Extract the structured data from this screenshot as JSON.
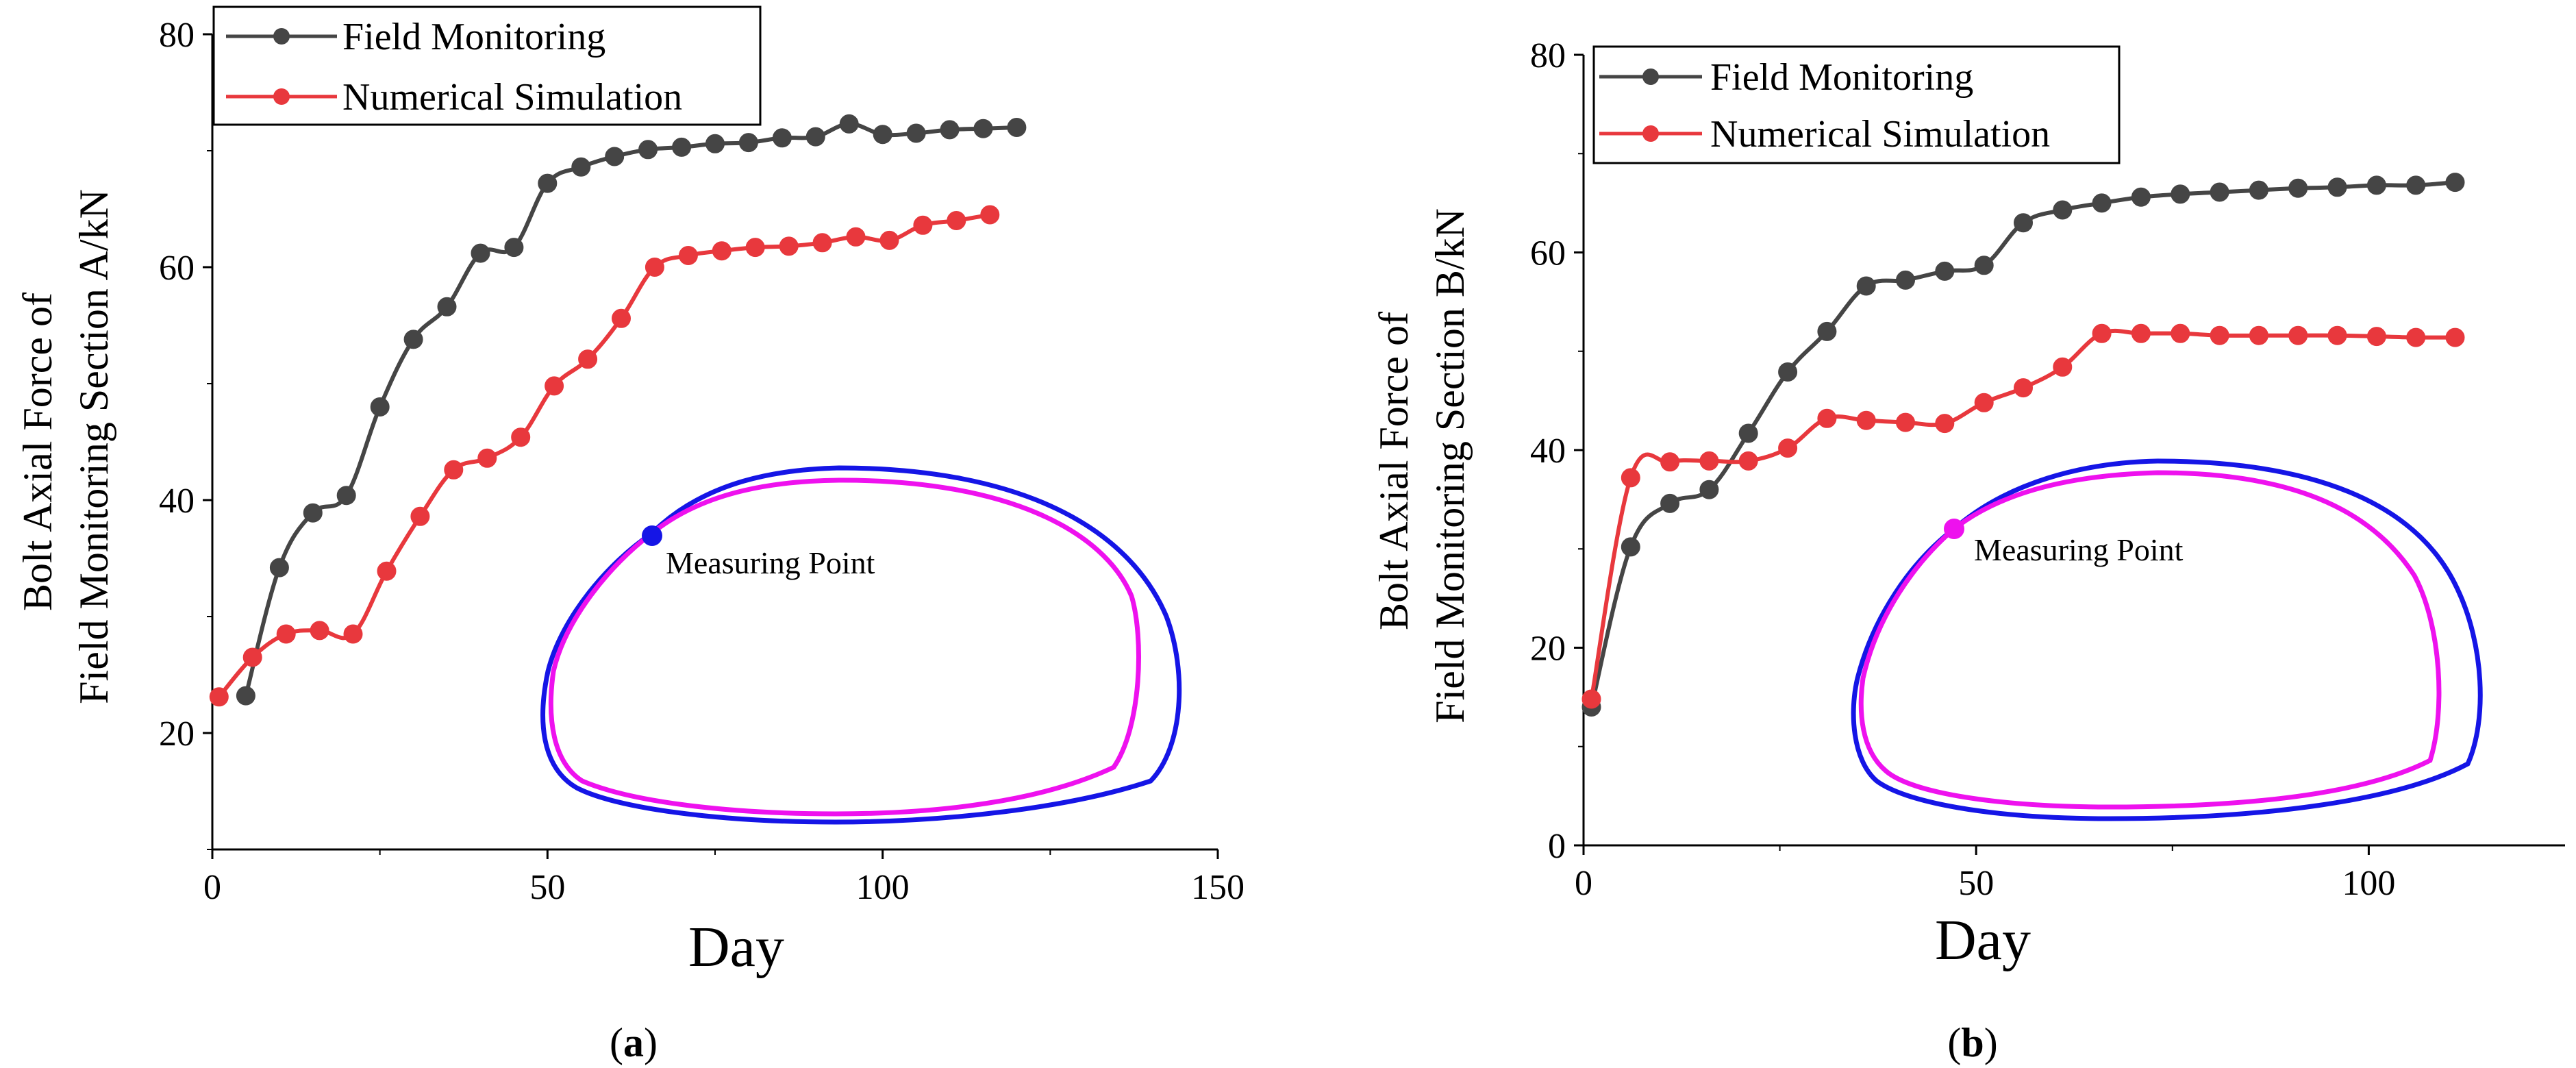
{
  "chart_data": [
    {
      "type": "line",
      "panel": "a",
      "panel_label": "a",
      "xlabel": "Day",
      "ylabel_lines": [
        "Bolt Axial Force of",
        "Field Monitoring Section A/kN"
      ],
      "xlim": [
        0,
        150
      ],
      "ylim": [
        10,
        80
      ],
      "xticks": [
        0,
        50,
        100,
        150
      ],
      "yticks": [
        20,
        40,
        60,
        80
      ],
      "legend_placement": "top-left",
      "inset_label": "Measuring Point",
      "series": [
        {
          "name": "Field Monitoring",
          "color": "#454545",
          "x": [
            5,
            10,
            15,
            20,
            25,
            30,
            35,
            40,
            45,
            50,
            55,
            60,
            65,
            70,
            75,
            80,
            85,
            90,
            95,
            100,
            105,
            110,
            115,
            120
          ],
          "y": [
            23.2,
            34.2,
            38.9,
            40.4,
            48,
            53.8,
            56.6,
            61.2,
            61.7,
            67.2,
            68.6,
            69.5,
            70.1,
            70.3,
            70.6,
            70.7,
            71.1,
            71.2,
            72.3,
            71.4,
            71.5,
            71.8,
            71.9,
            72
          ]
        },
        {
          "name": "Numerical Simulation",
          "color": "#e8383d",
          "x": [
            1,
            6,
            11,
            16,
            21,
            26,
            31,
            36,
            41,
            46,
            51,
            56,
            61,
            66,
            71,
            76,
            81,
            86,
            91,
            96,
            101,
            106,
            111,
            116
          ],
          "y": [
            23.1,
            26.5,
            28.5,
            28.8,
            28.5,
            33.9,
            38.6,
            42.6,
            43.6,
            45.4,
            49.8,
            52.1,
            55.6,
            60,
            61,
            61.4,
            61.7,
            61.8,
            62.1,
            62.6,
            62.3,
            63.6,
            64,
            64.5
          ]
        }
      ]
    },
    {
      "type": "line",
      "panel": "b",
      "panel_label": "b",
      "xlabel": "Day",
      "ylabel_lines": [
        "Bolt Axial Force of",
        "Field Monitoring Section B/kN"
      ],
      "xlim": [
        0,
        125
      ],
      "ylim": [
        0,
        80
      ],
      "xticks": [
        0,
        50,
        100
      ],
      "yticks": [
        0,
        20,
        40,
        60,
        80
      ],
      "legend_placement": "top-left",
      "inset_label": "Measuring Point",
      "series": [
        {
          "name": "Field Monitoring",
          "color": "#454545",
          "x": [
            1,
            6,
            11,
            16,
            21,
            26,
            31,
            36,
            41,
            46,
            51,
            56,
            61,
            66,
            71,
            76,
            81,
            86,
            91,
            96,
            101,
            106,
            111
          ],
          "y": [
            14,
            30.2,
            34.6,
            36,
            41.7,
            47.9,
            52,
            56.6,
            57.2,
            58.1,
            58.7,
            63,
            64.3,
            65,
            65.6,
            65.9,
            66.1,
            66.3,
            66.5,
            66.6,
            66.8,
            66.8,
            67.1
          ]
        },
        {
          "name": "Numerical Simulation",
          "color": "#e8383d",
          "x": [
            1,
            6,
            11,
            16,
            21,
            26,
            31,
            36,
            41,
            46,
            51,
            56,
            61,
            66,
            71,
            76,
            81,
            86,
            91,
            96,
            101,
            106,
            111
          ],
          "y": [
            14.8,
            37.2,
            38.8,
            38.9,
            38.9,
            40.2,
            43.2,
            43,
            42.8,
            42.7,
            44.8,
            46.3,
            48.4,
            51.8,
            51.8,
            51.8,
            51.6,
            51.6,
            51.6,
            51.6,
            51.5,
            51.4,
            51.4
          ]
        }
      ]
    }
  ]
}
